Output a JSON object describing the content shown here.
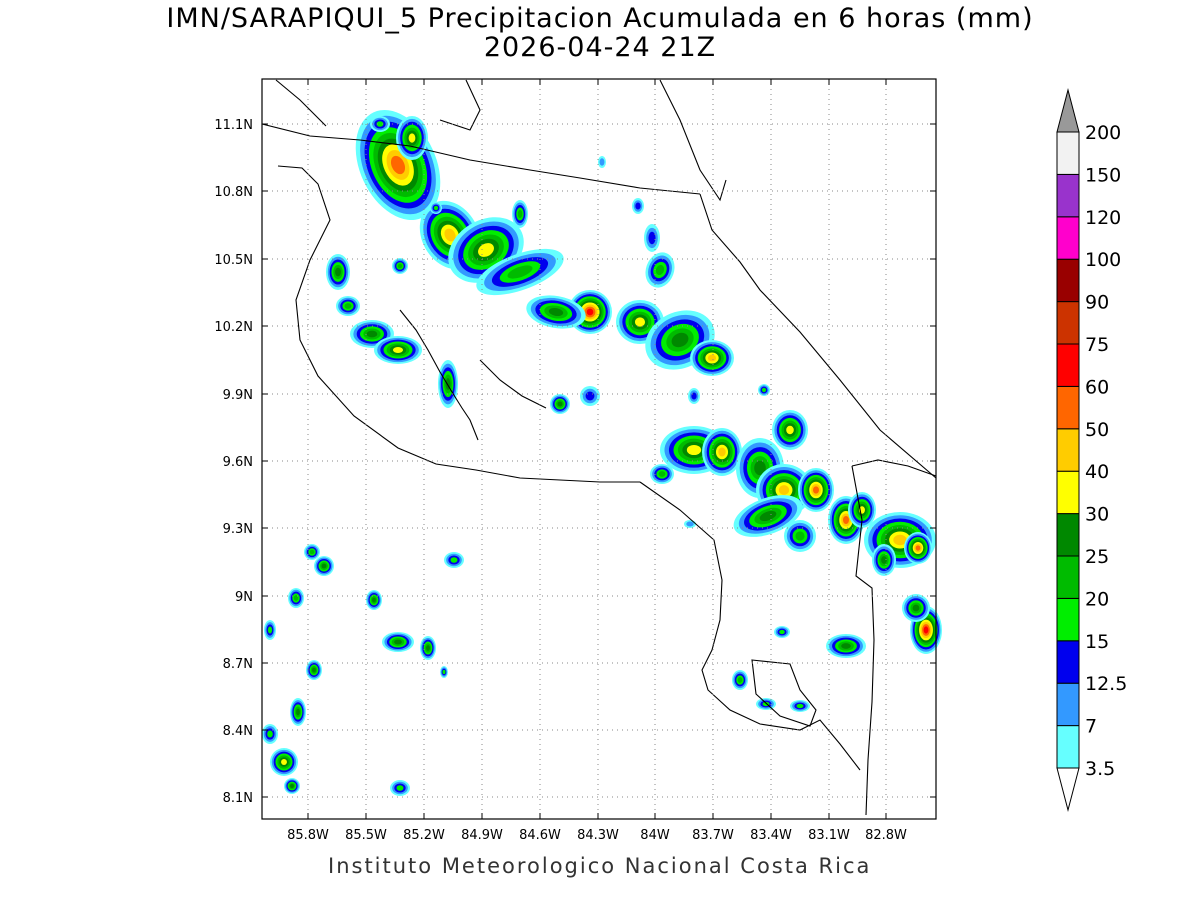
{
  "title": "IMN/SARAPIQUI_5 Precipitacion Acumulada en 6 horas (mm)",
  "subtitle": "2026-04-24 21Z",
  "footer": "Instituto Meteorologico Nacional Costa Rica",
  "map": {
    "type": "precipitation-map",
    "region": "Costa Rica",
    "lon_ticks": [
      "85.8W",
      "85.5W",
      "85.2W",
      "84.9W",
      "84.6W",
      "84.3W",
      "84W",
      "83.7W",
      "83.4W",
      "83.1W",
      "82.8W"
    ],
    "lat_ticks": [
      "11.1N",
      "10.8N",
      "10.5N",
      "10.2N",
      "9.9N",
      "9.6N",
      "9.3N",
      "9N",
      "8.7N",
      "8.4N",
      "8.1N"
    ],
    "grid": "dotted"
  },
  "colorbar": {
    "levels": [
      "3.5",
      "7",
      "12.5",
      "15",
      "20",
      "25",
      "30",
      "40",
      "50",
      "60",
      "75",
      "90",
      "100",
      "120",
      "150",
      "200"
    ],
    "colors": [
      "#66ffff",
      "#3399ff",
      "#0000ee",
      "#00ee00",
      "#00bb00",
      "#008800",
      "#ffff00",
      "#ffcc00",
      "#ff6600",
      "#ff0000",
      "#cc3300",
      "#990000",
      "#ff00cc",
      "#9933cc",
      "#f2f2f2",
      "#999999"
    ]
  }
}
